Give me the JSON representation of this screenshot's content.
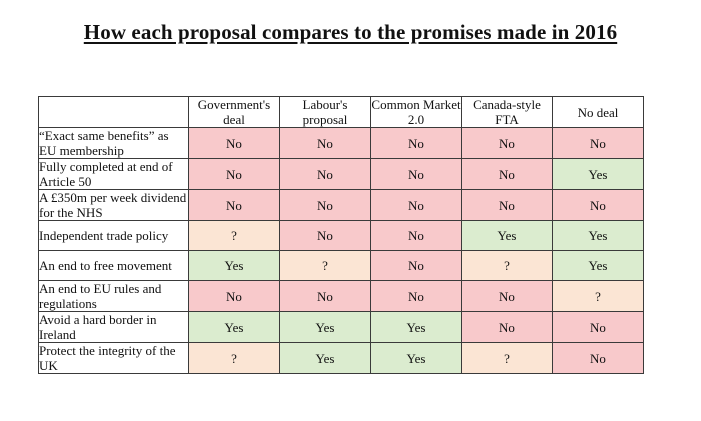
{
  "title": "How each proposal compares to the promises made in 2016",
  "columns": [
    "Government's deal",
    "Labour's proposal",
    "Common Market 2.0",
    "Canada-style FTA",
    "No deal"
  ],
  "rows": [
    {
      "label": "“Exact same benefits” as EU membership",
      "values": [
        "No",
        "No",
        "No",
        "No",
        "No"
      ]
    },
    {
      "label": "Fully completed at end of Article 50",
      "values": [
        "No",
        "No",
        "No",
        "No",
        "Yes"
      ]
    },
    {
      "label": "A £350m per week dividend for the NHS",
      "values": [
        "No",
        "No",
        "No",
        "No",
        "No"
      ]
    },
    {
      "label": "Independent trade policy",
      "values": [
        "?",
        "No",
        "No",
        "Yes",
        "Yes"
      ]
    },
    {
      "label": "An end to free movement",
      "values": [
        "Yes",
        "?",
        "No",
        "?",
        "Yes"
      ]
    },
    {
      "label": "An end to EU rules and regulations",
      "values": [
        "No",
        "No",
        "No",
        "No",
        "?"
      ]
    },
    {
      "label": "Avoid a hard border in Ireland",
      "values": [
        "Yes",
        "Yes",
        "Yes",
        "No",
        "No"
      ]
    },
    {
      "label": "Protect the integrity of the UK",
      "values": [
        "?",
        "Yes",
        "Yes",
        "?",
        "No"
      ]
    }
  ],
  "colors": {
    "no": "#f8c9cb",
    "yes": "#dbeccf",
    "maybe": "#fbe5d4"
  }
}
